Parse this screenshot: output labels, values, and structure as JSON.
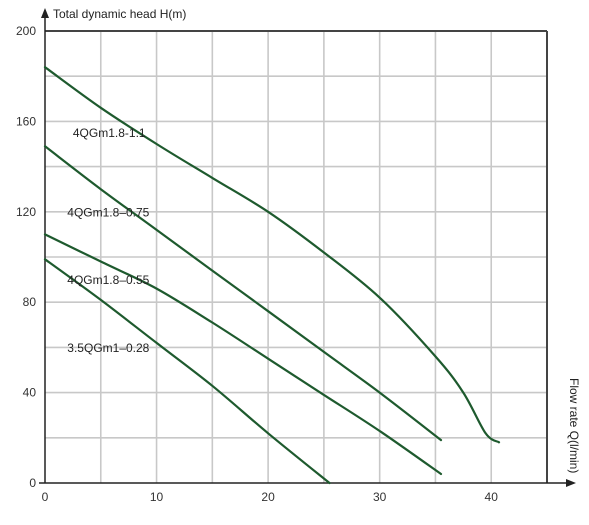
{
  "chart_data": {
    "type": "line",
    "xlabel": "Flow rate Q(l/min)",
    "ylabel": "Total dynamic head H(m)",
    "xlim": [
      0,
      45
    ],
    "ylim": [
      0,
      200
    ],
    "x_ticks": [
      0,
      10,
      20,
      30,
      40
    ],
    "y_ticks": [
      0,
      40,
      80,
      120,
      160,
      200
    ],
    "x_grid_step": 5,
    "y_grid_step": 20,
    "grid": true,
    "legend": "none",
    "line_color": "#1e5a2e",
    "grid_color": "#c8c8c8",
    "series": [
      {
        "name": "4QGm1.8-1.1",
        "label_at": [
          2.5,
          153
        ],
        "points": [
          [
            0,
            184
          ],
          [
            5,
            166
          ],
          [
            10,
            150
          ],
          [
            15,
            135
          ],
          [
            20,
            120
          ],
          [
            25,
            102
          ],
          [
            30,
            82
          ],
          [
            35,
            56
          ],
          [
            37.5,
            40
          ],
          [
            39.5,
            22
          ],
          [
            40.7,
            18
          ]
        ]
      },
      {
        "name": "4QGm1.8–0.75",
        "label_at": [
          2,
          118
        ],
        "points": [
          [
            0,
            149
          ],
          [
            5,
            130
          ],
          [
            10,
            112
          ],
          [
            15,
            94
          ],
          [
            20,
            76
          ],
          [
            25,
            58
          ],
          [
            30,
            40
          ],
          [
            35.5,
            19
          ]
        ]
      },
      {
        "name": "4QGm1.8–0.55",
        "label_at": [
          2,
          88
        ],
        "points": [
          [
            0,
            110
          ],
          [
            5,
            98
          ],
          [
            10,
            86
          ],
          [
            15,
            71
          ],
          [
            20,
            55
          ],
          [
            25,
            39
          ],
          [
            30,
            23
          ],
          [
            35.5,
            4
          ]
        ]
      },
      {
        "name": "3.5QGm1–0.28",
        "label_at": [
          2,
          58
        ],
        "points": [
          [
            0,
            99
          ],
          [
            5,
            81
          ],
          [
            10,
            62
          ],
          [
            15,
            43
          ],
          [
            20,
            22
          ],
          [
            25.5,
            0
          ]
        ]
      }
    ]
  }
}
